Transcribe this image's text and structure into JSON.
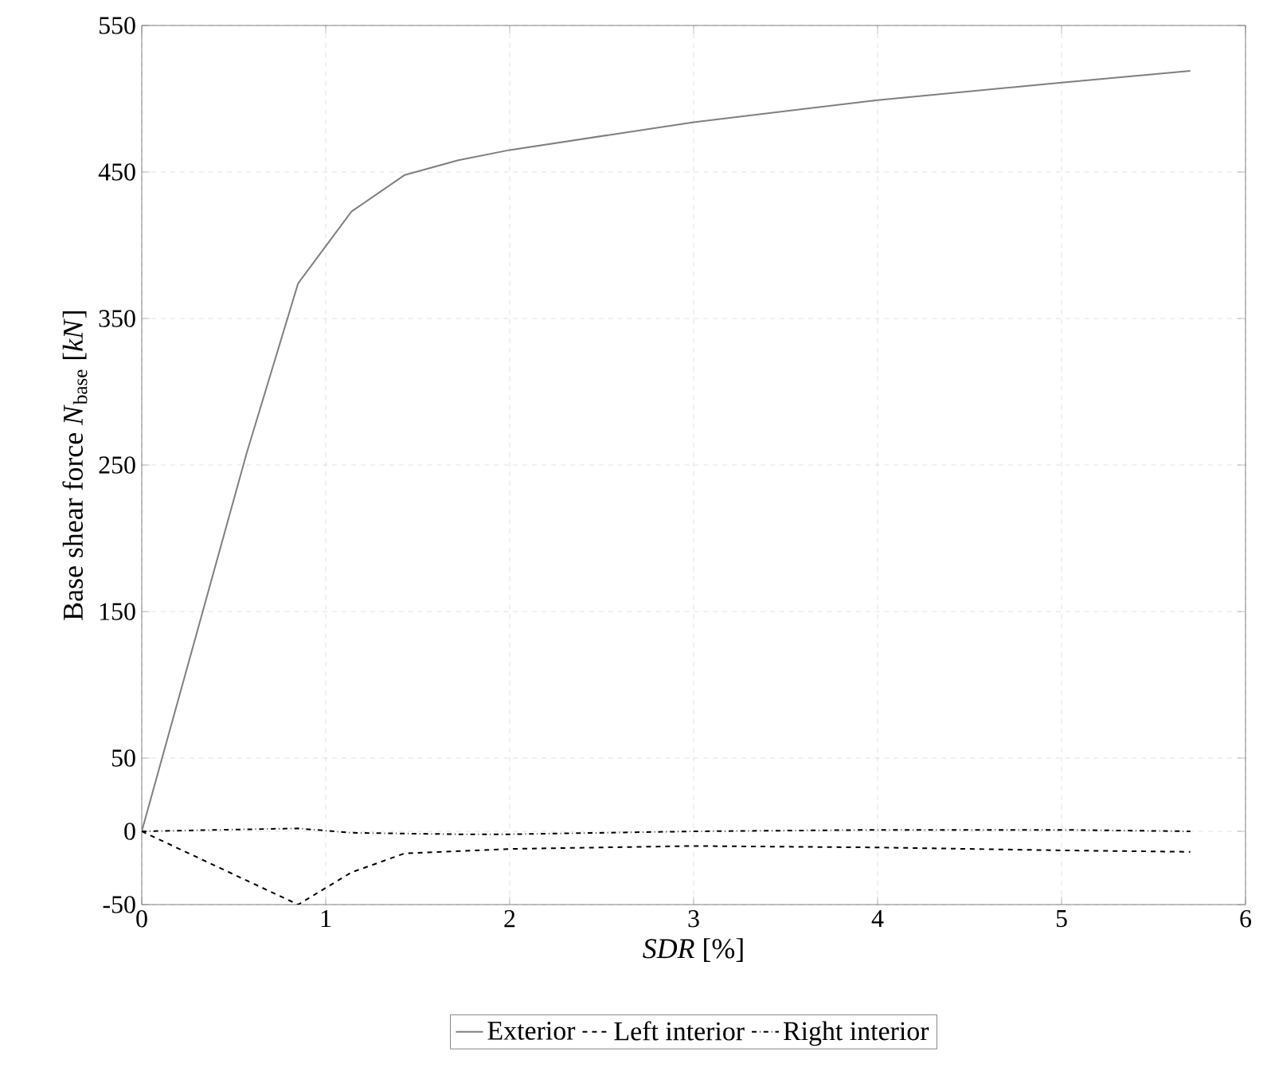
{
  "chart_data": {
    "type": "line",
    "xlabel": "*SDR* [%]",
    "ylabel": "Base shear force *N*$_{base}$ [*kN*]",
    "xlim": [
      0,
      6
    ],
    "ylim": [
      -50,
      550
    ],
    "xticks": [
      0,
      1,
      2,
      3,
      4,
      5,
      6
    ],
    "yticks": [
      -50,
      0,
      50,
      150,
      250,
      350,
      450,
      550
    ],
    "grid": true,
    "legend": "bottom",
    "marker": "none",
    "series": [
      {
        "name": "Exterior",
        "color": "#7f7f7f",
        "line_style": "solid",
        "x": [
          0,
          0.57,
          0.85,
          1.14,
          1.43,
          1.72,
          2,
          3,
          4,
          5,
          5.7
        ],
        "values": [
          0,
          258,
          374,
          423,
          448,
          458,
          465,
          484,
          499,
          511,
          519
        ]
      },
      {
        "name": "Left interior",
        "color": "#000000",
        "line_style": "dashed",
        "x": [
          0,
          0.85,
          1.14,
          1.43,
          2,
          3,
          4,
          5,
          5.7
        ],
        "values": [
          0,
          -50,
          -28,
          -15,
          -12,
          -10,
          -11,
          -13,
          -14
        ]
      },
      {
        "name": "Right interior",
        "color": "#000000",
        "line_style": "dashdot",
        "x": [
          0,
          0.85,
          1.14,
          1.72,
          2,
          3,
          4,
          5,
          5.7
        ],
        "values": [
          0,
          2,
          -1,
          -2,
          -2,
          0,
          1,
          1,
          0
        ]
      }
    ]
  }
}
